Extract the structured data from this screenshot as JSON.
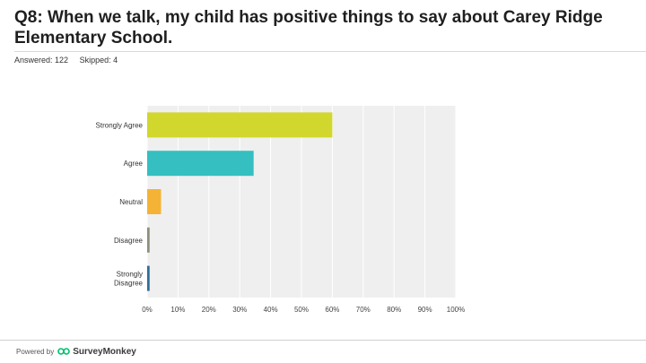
{
  "question": {
    "title": "Q8: When we talk, my child has positive things to say about Carey Ridge Elementary School."
  },
  "stats": {
    "answered": "Answered: 122",
    "skipped": "Skipped: 4"
  },
  "footer": {
    "powered_by": "Powered by",
    "brand": "SurveyMonkey"
  },
  "colors": {
    "plot_background": "#efefef",
    "gridline": "#ffffff"
  },
  "chart_data": {
    "type": "bar",
    "orientation": "horizontal",
    "categories": [
      "Strongly Agree",
      "Agree",
      "Neutral",
      "Disagree",
      "Strongly Disagree"
    ],
    "category_lines": [
      [
        "Strongly Agree"
      ],
      [
        "Agree"
      ],
      [
        "Neutral"
      ],
      [
        "Disagree"
      ],
      [
        "Strongly",
        "Disagree"
      ]
    ],
    "values": [
      60,
      34.5,
      4.5,
      0.8,
      0.8
    ],
    "bar_colors": [
      "#d1d72c",
      "#35bfc1",
      "#f5b335",
      "#8f8f7d",
      "#2f6f96"
    ],
    "x_ticks": [
      "0%",
      "10%",
      "20%",
      "30%",
      "40%",
      "50%",
      "60%",
      "70%",
      "80%",
      "90%",
      "100%"
    ],
    "xlim": [
      0,
      100
    ],
    "grid": true,
    "legend": "none"
  }
}
